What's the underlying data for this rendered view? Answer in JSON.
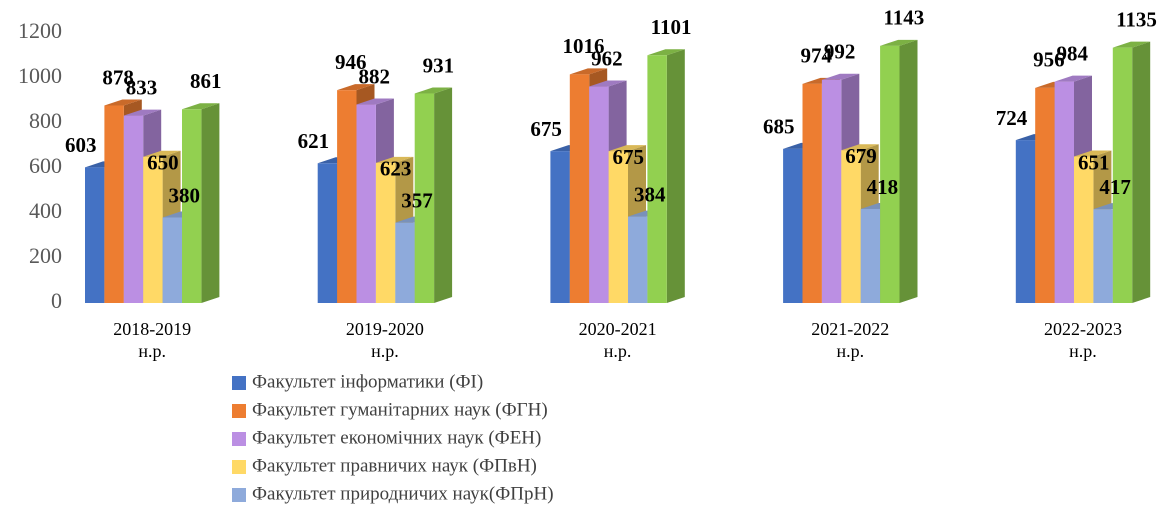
{
  "chart_data": {
    "type": "bar3d",
    "categories": [
      "2018-2019 н.р.",
      "2019-2020 н.р.",
      "2020-2021 н.р.",
      "2021-2022 н.р.",
      "2022-2023 н.р."
    ],
    "series": [
      {
        "name": "Факультет інформатики (ФІ)",
        "color": "#4472c4",
        "values": [
          603,
          621,
          675,
          685,
          724
        ]
      },
      {
        "name": "Факультет гуманітарних наук (ФГН)",
        "color": "#ed7d31",
        "values": [
          878,
          946,
          1016,
          974,
          956
        ]
      },
      {
        "name": "Факультет економічних наук (ФЕН)",
        "color": "#bb8fe3",
        "values": [
          833,
          882,
          962,
          992,
          984
        ]
      },
      {
        "name": "Факультет правничих наук (ФПвН)",
        "color": "#ffd966",
        "values": [
          650,
          623,
          675,
          679,
          651
        ]
      },
      {
        "name": "Факультет природничих наук(ФПрН)",
        "color": "#8eaadb",
        "values": [
          380,
          357,
          384,
          418,
          417
        ]
      },
      {
        "color": "#92d050",
        "values": [
          861,
          931,
          1101,
          1143,
          1135
        ]
      }
    ],
    "ylim": [
      0,
      1200
    ],
    "yticks": [
      0,
      200,
      400,
      600,
      800,
      1000,
      1200
    ],
    "legend": "bottom"
  }
}
